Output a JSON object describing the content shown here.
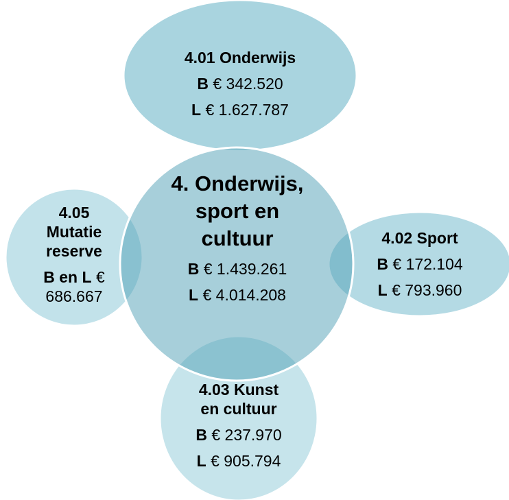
{
  "nodes": [
    {
      "title_lines": [
        "4.01 Onderwijs"
      ],
      "amounts": [
        {
          "label": "B",
          "value": "€ 342.520"
        },
        {
          "label": "L",
          "value": "€ 1.627.787"
        }
      ]
    },
    {
      "title_lines": [
        "4. Onderwijs,",
        "sport en",
        "cultuur"
      ],
      "amounts": [
        {
          "label": "B",
          "value": "€ 1.439.261"
        },
        {
          "label": "L",
          "value": "€ 4.014.208"
        }
      ]
    },
    {
      "title_lines": [
        "4.05",
        "Mutatie",
        "reserve"
      ],
      "amounts": [
        {
          "label": "B en L",
          "value": "€ 686.667"
        }
      ]
    },
    {
      "title_lines": [
        "4.02 Sport"
      ],
      "amounts": [
        {
          "label": "B",
          "value": "€ 172.104"
        },
        {
          "label": "L",
          "value": "€ 793.960"
        }
      ]
    },
    {
      "title_lines": [
        "4.03 Kunst",
        "en cultuur"
      ],
      "amounts": [
        {
          "label": "B",
          "value": "€ 237.970"
        },
        {
          "label": "L",
          "value": "€ 905.794"
        }
      ]
    }
  ]
}
